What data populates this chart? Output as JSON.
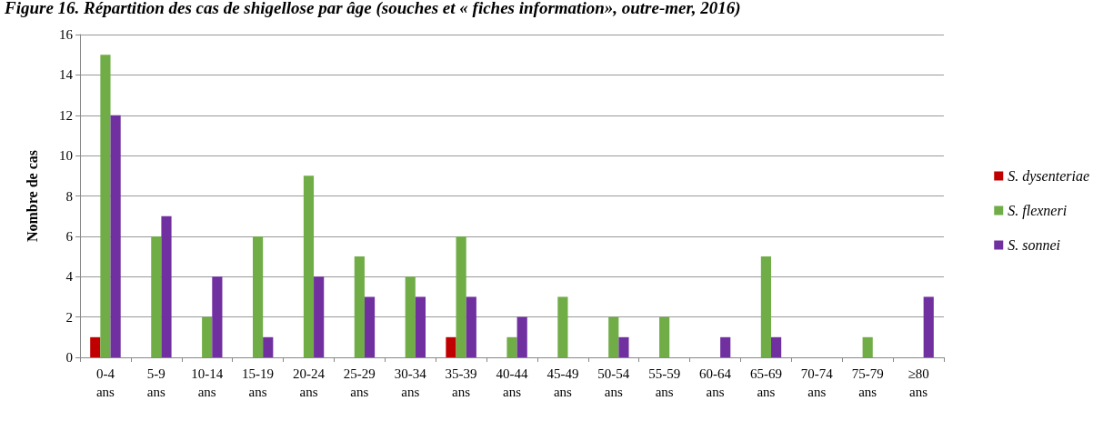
{
  "chart_data": {
    "type": "bar",
    "title": "Figure 16. Répartition des cas de shigellose par âge (souches et « fiches information», outre-mer, 2016)",
    "ylabel": "Nombre de cas",
    "categories": [
      "0-4 ans",
      "5-9 ans",
      "10-14 ans",
      "15-19 ans",
      "20-24 ans",
      "25-29 ans",
      "30-34 ans",
      "35-39 ans",
      "40-44 ans",
      "45-49 ans",
      "50-54 ans",
      "55-59 ans",
      "60-64 ans",
      "65-69 ans",
      "70-74 ans",
      "75-79 ans",
      "≥80 ans"
    ],
    "series": [
      {
        "name": "S. dysenteriae",
        "color": "#c00000",
        "values": [
          1,
          0,
          0,
          0,
          0,
          0,
          0,
          1,
          0,
          0,
          0,
          0,
          0,
          0,
          0,
          0,
          0
        ]
      },
      {
        "name": "S. flexneri",
        "color": "#70ad47",
        "values": [
          15,
          6,
          2,
          6,
          9,
          5,
          4,
          6,
          1,
          3,
          2,
          2,
          0,
          5,
          0,
          1,
          0
        ]
      },
      {
        "name": "S. sonnei",
        "color": "#7030a0",
        "values": [
          12,
          7,
          4,
          1,
          4,
          3,
          3,
          3,
          2,
          0,
          1,
          0,
          1,
          1,
          0,
          0,
          3
        ]
      }
    ],
    "ylim": [
      0,
      16
    ],
    "yticks": [
      0,
      2,
      4,
      6,
      8,
      10,
      12,
      14,
      16
    ],
    "grid": "y",
    "legend": "right"
  }
}
